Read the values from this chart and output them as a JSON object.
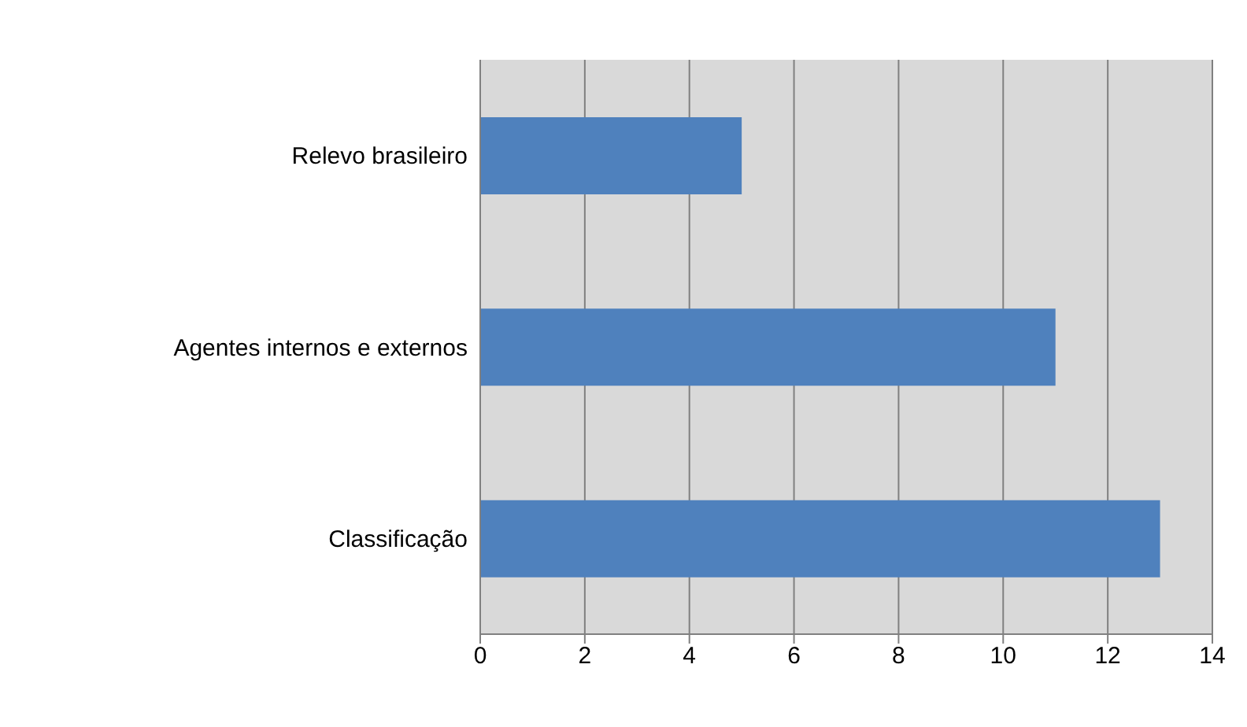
{
  "chart_data": {
    "type": "bar",
    "orientation": "horizontal",
    "categories": [
      "Relevo brasileiro",
      "Agentes internos e externos",
      "Classificação"
    ],
    "values": [
      5,
      11,
      13
    ],
    "color": "#4f81bd",
    "xlim": [
      0,
      14
    ],
    "xticks": [
      0,
      2,
      4,
      6,
      8,
      10,
      12,
      14
    ],
    "grid": "x"
  }
}
